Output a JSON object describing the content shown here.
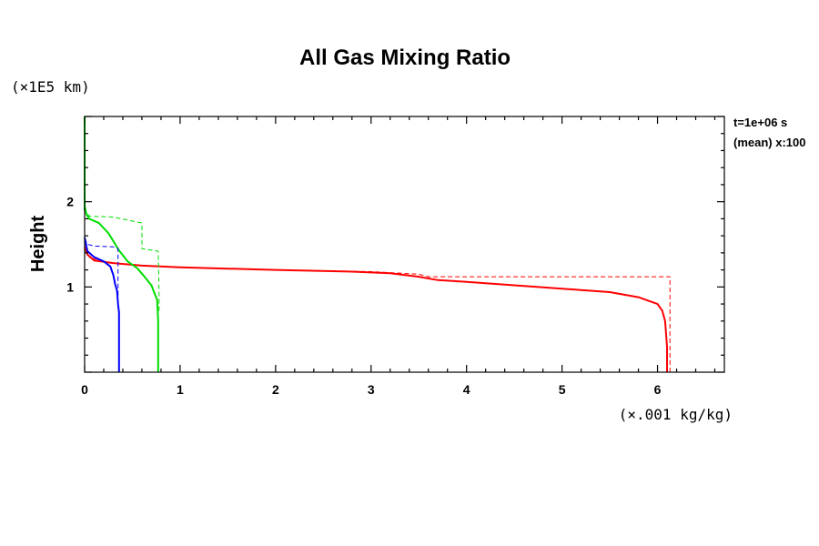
{
  "chart_data": {
    "type": "line",
    "title": "All Gas Mixing Ratio",
    "xlabel": "",
    "ylabel": "Height",
    "x_unit": "(×.001 kg/kg)",
    "y_unit": "(×1E5 km)",
    "annotations": [
      "t=1e+06 s",
      "(mean) x:100"
    ],
    "xlim": [
      0,
      6.7
    ],
    "ylim": [
      0,
      3
    ],
    "x_ticks": [
      0,
      1,
      2,
      3,
      4,
      5,
      6
    ],
    "y_ticks": [
      1,
      2
    ],
    "grid": false,
    "colors": {
      "red": "#ff0000",
      "green": "#00dd00",
      "blue": "#0000ff"
    },
    "series": [
      {
        "color": "#ff0000",
        "style": "solid",
        "points": [
          [
            6.1,
            0
          ],
          [
            6.1,
            0.3
          ],
          [
            6.08,
            0.6
          ],
          [
            6.05,
            0.72
          ],
          [
            6.0,
            0.8
          ],
          [
            5.8,
            0.88
          ],
          [
            5.5,
            0.94
          ],
          [
            5.0,
            0.98
          ],
          [
            4.5,
            1.02
          ],
          [
            4.0,
            1.06
          ],
          [
            3.7,
            1.08
          ],
          [
            3.5,
            1.12
          ],
          [
            3.2,
            1.16
          ],
          [
            2.8,
            1.18
          ],
          [
            2.0,
            1.2
          ],
          [
            1.0,
            1.23
          ],
          [
            0.6,
            1.25
          ],
          [
            0.3,
            1.28
          ],
          [
            0.1,
            1.31
          ],
          [
            0.03,
            1.38
          ],
          [
            0.0,
            1.47
          ]
        ]
      },
      {
        "color": "#ff0000",
        "style": "dashed",
        "points": [
          [
            6.13,
            0
          ],
          [
            6.13,
            1.12
          ],
          [
            3.6,
            1.12
          ],
          [
            3.5,
            1.15
          ],
          [
            3.0,
            1.18
          ],
          [
            2.0,
            1.2
          ],
          [
            1.0,
            1.23
          ],
          [
            0.5,
            1.26
          ],
          [
            0.2,
            1.29
          ],
          [
            0.05,
            1.35
          ],
          [
            0.0,
            1.45
          ]
        ]
      },
      {
        "color": "#00dd00",
        "style": "solid",
        "points": [
          [
            0.77,
            0
          ],
          [
            0.77,
            0.6
          ],
          [
            0.76,
            0.85
          ],
          [
            0.73,
            0.93
          ],
          [
            0.7,
            1.02
          ],
          [
            0.62,
            1.13
          ],
          [
            0.55,
            1.22
          ],
          [
            0.45,
            1.3
          ],
          [
            0.36,
            1.43
          ],
          [
            0.25,
            1.63
          ],
          [
            0.15,
            1.75
          ],
          [
            0.05,
            1.8
          ],
          [
            0.02,
            1.85
          ],
          [
            0.0,
            1.95
          ]
        ]
      },
      {
        "color": "#00dd00",
        "style": "dashed",
        "points": [
          [
            0.78,
            0.72
          ],
          [
            0.78,
            0.95
          ],
          [
            0.77,
            1.42
          ],
          [
            0.6,
            1.45
          ],
          [
            0.6,
            1.75
          ],
          [
            0.3,
            1.82
          ],
          [
            0.05,
            1.83
          ],
          [
            0.0,
            1.9
          ]
        ]
      },
      {
        "color": "#00dd00",
        "style": "solid",
        "points": [
          [
            0.0,
            3.0
          ],
          [
            0.0,
            1.9
          ]
        ]
      },
      {
        "color": "#0000ff",
        "style": "solid",
        "points": [
          [
            0.36,
            0
          ],
          [
            0.36,
            0.7
          ],
          [
            0.35,
            0.8
          ],
          [
            0.34,
            0.95
          ],
          [
            0.32,
            1.03
          ],
          [
            0.3,
            1.14
          ],
          [
            0.27,
            1.24
          ],
          [
            0.2,
            1.3
          ],
          [
            0.1,
            1.35
          ],
          [
            0.03,
            1.42
          ],
          [
            0.0,
            1.58
          ]
        ]
      },
      {
        "color": "#0000ff",
        "style": "dashed",
        "points": [
          [
            0.35,
            0.9
          ],
          [
            0.35,
            1.45
          ],
          [
            0.3,
            1.47
          ],
          [
            0.1,
            1.48
          ],
          [
            0.03,
            1.5
          ],
          [
            0.0,
            1.57
          ]
        ]
      }
    ]
  }
}
